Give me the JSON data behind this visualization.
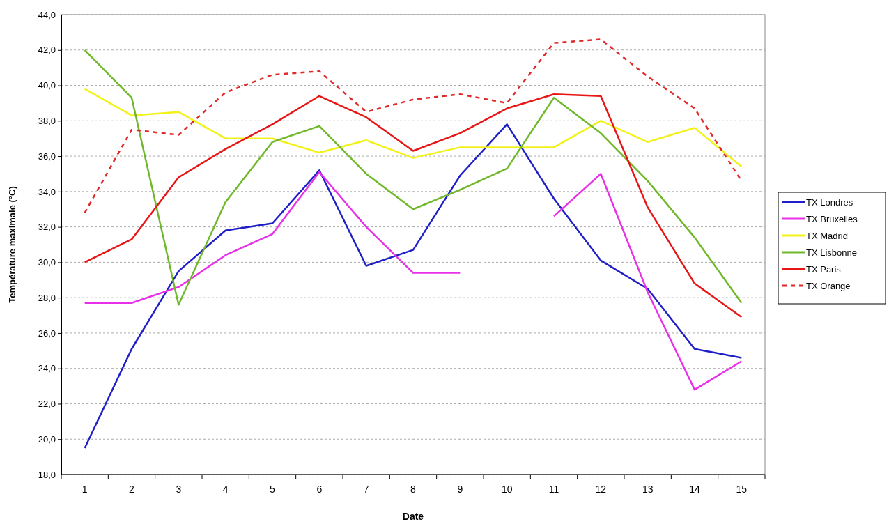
{
  "chart_data": {
    "type": "line",
    "xlabel": "Date",
    "ylabel": "Température maximale (°C)",
    "categories": [
      "1",
      "2",
      "3",
      "4",
      "5",
      "6",
      "7",
      "8",
      "9",
      "10",
      "11",
      "12",
      "13",
      "14",
      "15"
    ],
    "ylim": [
      18,
      44
    ],
    "yticks": [
      {
        "value": 18,
        "label": "18,0"
      },
      {
        "value": 20,
        "label": "20,0"
      },
      {
        "value": 22,
        "label": "22,0"
      },
      {
        "value": 24,
        "label": "24,0"
      },
      {
        "value": 26,
        "label": "26,0"
      },
      {
        "value": 28,
        "label": "28,0"
      },
      {
        "value": 30,
        "label": "30,0"
      },
      {
        "value": 32,
        "label": "32,0"
      },
      {
        "value": 34,
        "label": "34,0"
      },
      {
        "value": 36,
        "label": "36,0"
      },
      {
        "value": 38,
        "label": "38,0"
      },
      {
        "value": 40,
        "label": "40,0"
      },
      {
        "value": 42,
        "label": "42,0"
      },
      {
        "value": 44,
        "label": "44,0"
      }
    ],
    "grid": "y",
    "legend": "right",
    "marker": "none",
    "series": [
      {
        "name": "TX Londres",
        "color": "#1f1fc8",
        "line_style": "solid",
        "values": [
          19.5,
          25.1,
          29.5,
          31.8,
          32.2,
          35.2,
          29.8,
          30.7,
          34.9,
          37.8,
          33.6,
          30.1,
          28.5,
          25.1,
          24.6
        ]
      },
      {
        "name": "TX Bruxelles",
        "color": "#e830e8",
        "line_style": "solid",
        "values": [
          27.7,
          27.7,
          28.6,
          30.4,
          31.6,
          35.1,
          32.0,
          29.4,
          29.4,
          null,
          32.6,
          35.0,
          28.3,
          22.8,
          24.4
        ]
      },
      {
        "name": "TX Madrid",
        "color": "#f2f21a",
        "line_style": "solid",
        "values": [
          39.8,
          38.3,
          38.5,
          37.0,
          37.0,
          36.2,
          36.9,
          35.9,
          36.5,
          36.5,
          36.5,
          38.0,
          36.8,
          37.6,
          35.4
        ]
      },
      {
        "name": "TX Lisbonne",
        "color": "#6fb82a",
        "line_style": "solid",
        "values": [
          42.0,
          39.3,
          27.6,
          33.4,
          36.8,
          37.7,
          35.0,
          33.0,
          34.1,
          35.3,
          39.3,
          37.3,
          34.6,
          31.4,
          27.7
        ]
      },
      {
        "name": "TX Paris",
        "color": "#e81515",
        "line_style": "solid",
        "values": [
          30.0,
          31.3,
          34.8,
          36.4,
          37.8,
          39.4,
          38.2,
          36.3,
          37.3,
          38.7,
          39.5,
          39.4,
          33.1,
          28.8,
          26.9
        ]
      },
      {
        "name": "TX Orange",
        "color": "#e02828",
        "line_style": "dashed",
        "values": [
          32.8,
          37.5,
          37.2,
          39.6,
          40.6,
          40.8,
          38.5,
          39.2,
          39.5,
          39.0,
          42.4,
          42.6,
          40.5,
          38.7,
          34.6
        ]
      }
    ]
  }
}
